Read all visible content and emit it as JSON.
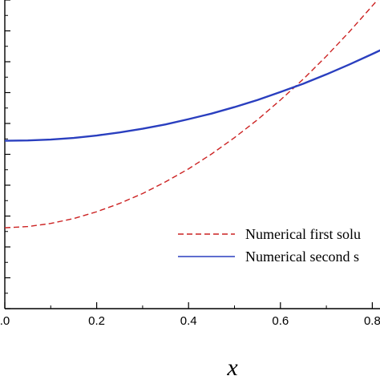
{
  "chart_data": {
    "type": "line",
    "title": "",
    "xlabel": "x",
    "ylabel": "",
    "xlim": [
      0.0,
      0.82
    ],
    "x_ticks": [
      0.0,
      0.2,
      0.4,
      0.6,
      0.8
    ],
    "x_tick_labels": [
      ".0",
      "0.2",
      "0.4",
      "0.6",
      "0.8"
    ],
    "ylim": [
      0,
      1
    ],
    "y_tick_count": 11,
    "y_tick_labels_visible": false,
    "grid": false,
    "legend_position": "lower-right",
    "series": [
      {
        "name": "Numerical first solu",
        "style": "dashed",
        "color": "#cc2222",
        "x": [
          0.0,
          0.05,
          0.1,
          0.15,
          0.2,
          0.25,
          0.3,
          0.35,
          0.4,
          0.45,
          0.5,
          0.55,
          0.6,
          0.65,
          0.7,
          0.75,
          0.8,
          0.82
        ],
        "y": [
          0.262,
          0.266,
          0.276,
          0.292,
          0.314,
          0.341,
          0.373,
          0.411,
          0.453,
          0.501,
          0.554,
          0.612,
          0.676,
          0.744,
          0.818,
          0.897,
          0.981,
          1.015
        ]
      },
      {
        "name": "Numerical second s",
        "style": "solid",
        "color": "#2a3fbf",
        "x": [
          0.0,
          0.05,
          0.1,
          0.15,
          0.2,
          0.25,
          0.3,
          0.35,
          0.4,
          0.45,
          0.5,
          0.55,
          0.6,
          0.65,
          0.7,
          0.75,
          0.8,
          0.82
        ],
        "y": [
          0.544,
          0.545,
          0.548,
          0.553,
          0.561,
          0.571,
          0.583,
          0.597,
          0.614,
          0.632,
          0.653,
          0.676,
          0.702,
          0.729,
          0.759,
          0.791,
          0.825,
          0.839
        ]
      }
    ]
  }
}
